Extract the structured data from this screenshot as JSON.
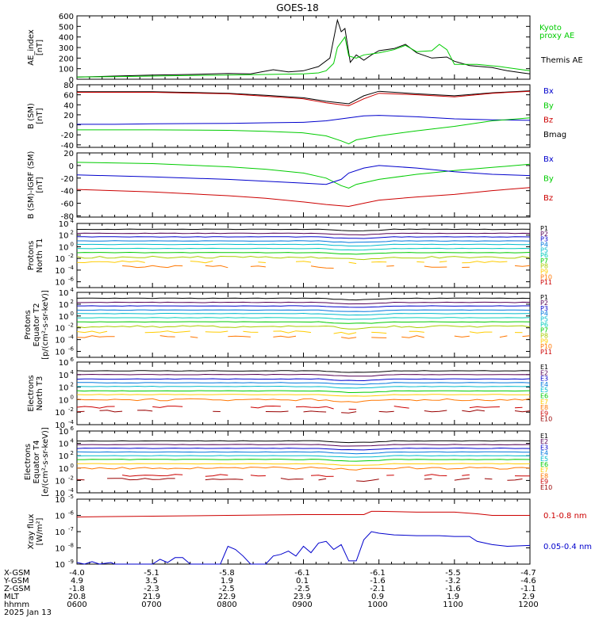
{
  "title": "GOES-18",
  "date_label": "2025 Jan 13",
  "chart_data": [
    {
      "id": "ae",
      "type": "line",
      "ylabel": [
        "AE_index",
        "[nT]"
      ],
      "ylim": [
        0,
        600
      ],
      "ticks": [
        0,
        100,
        200,
        300,
        400,
        500,
        600
      ],
      "tick_labels": [
        "0",
        "100",
        "200",
        "300",
        "400",
        "500",
        "600"
      ],
      "legend": [
        {
          "label": "Kyoto",
          "color": "#00cc00"
        },
        {
          "label": "proxy AE",
          "color": "#00cc00"
        },
        {
          "label": "Themis AE",
          "color": "#000000"
        }
      ],
      "series": [
        {
          "color": "#000000",
          "x": [
            6.0,
            6.5,
            7.0,
            7.5,
            8.0,
            8.3,
            8.6,
            8.8,
            9.0,
            9.2,
            9.35,
            9.45,
            9.5,
            9.55,
            9.62,
            9.7,
            9.8,
            9.9,
            10.0,
            10.2,
            10.35,
            10.5,
            10.7,
            10.9,
            11.0,
            11.2,
            11.5,
            11.7,
            11.9,
            12.0
          ],
          "y": [
            20,
            30,
            40,
            45,
            55,
            50,
            90,
            70,
            80,
            120,
            200,
            560,
            450,
            480,
            160,
            230,
            180,
            230,
            270,
            290,
            330,
            250,
            200,
            210,
            170,
            130,
            110,
            80,
            60,
            50
          ]
        },
        {
          "color": "#00cc00",
          "x": [
            6.0,
            6.5,
            7.0,
            7.5,
            8.0,
            8.5,
            9.0,
            9.2,
            9.3,
            9.4,
            9.45,
            9.5,
            9.55,
            9.6,
            9.7,
            9.8,
            10.0,
            10.2,
            10.35,
            10.5,
            10.7,
            10.8,
            10.9,
            11.0,
            11.3,
            11.6,
            11.9,
            12.0
          ],
          "y": [
            20,
            25,
            30,
            35,
            40,
            45,
            50,
            60,
            80,
            150,
            300,
            350,
            400,
            220,
            200,
            230,
            250,
            280,
            320,
            260,
            270,
            330,
            280,
            140,
            140,
            120,
            90,
            80
          ]
        }
      ]
    },
    {
      "id": "bsm",
      "type": "line",
      "ylabel": [
        "B (SM)",
        "[nT]"
      ],
      "ylim": [
        -45,
        80
      ],
      "ticks": [
        -40,
        -20,
        0,
        20,
        40,
        60,
        80
      ],
      "tick_labels": [
        "-40",
        "-20",
        "0",
        "20",
        "40",
        "60",
        "80"
      ],
      "legend": [
        {
          "label": "Bx",
          "color": "#0000cc"
        },
        {
          "label": "By",
          "color": "#00cc00"
        },
        {
          "label": "Bz",
          "color": "#cc0000"
        },
        {
          "label": "Bmag",
          "color": "#000000"
        }
      ],
      "series": [
        {
          "color": "#000000",
          "x": [
            6.0,
            7.0,
            8.0,
            8.5,
            9.0,
            9.3,
            9.6,
            9.8,
            10.0,
            10.5,
            11.0,
            11.5,
            12.0
          ],
          "y": [
            66,
            66,
            63,
            59,
            54,
            47,
            42,
            58,
            67,
            62,
            58,
            64,
            68
          ]
        },
        {
          "color": "#cc0000",
          "x": [
            6.0,
            7.0,
            8.0,
            8.5,
            9.0,
            9.3,
            9.6,
            9.8,
            10.0,
            10.5,
            11.0,
            11.5,
            12.0
          ],
          "y": [
            65,
            65,
            62,
            57,
            52,
            44,
            38,
            52,
            63,
            60,
            56,
            63,
            67
          ]
        },
        {
          "color": "#0000cc",
          "x": [
            6.0,
            6.5,
            7.0,
            8.0,
            8.5,
            9.0,
            9.3,
            9.6,
            9.8,
            10.0,
            10.5,
            11.0,
            11.5,
            12.0
          ],
          "y": [
            1,
            1,
            2,
            3,
            4,
            5,
            8,
            14,
            18,
            19,
            16,
            12,
            10,
            9
          ]
        },
        {
          "color": "#00cc00",
          "x": [
            6.0,
            7.0,
            8.0,
            8.5,
            9.0,
            9.3,
            9.5,
            9.6,
            9.7,
            10.0,
            10.5,
            11.0,
            11.5,
            12.0
          ],
          "y": [
            -10,
            -10,
            -11,
            -13,
            -16,
            -22,
            -32,
            -38,
            -30,
            -22,
            -12,
            -3,
            8,
            14
          ]
        }
      ]
    },
    {
      "id": "bigrf",
      "type": "line",
      "ylabel": [
        "B (SM)-IGRF (SM)",
        "[nT]"
      ],
      "ylim": [
        -82,
        20
      ],
      "ticks": [
        -80,
        -60,
        -40,
        -20,
        0,
        20
      ],
      "tick_labels": [
        "-80",
        "-60",
        "-40",
        "-20",
        "0",
        "20"
      ],
      "legend": [
        {
          "label": "Bx",
          "color": "#0000cc"
        },
        {
          "label": "By",
          "color": "#00cc00"
        },
        {
          "label": "Bz",
          "color": "#cc0000"
        }
      ],
      "series": [
        {
          "color": "#00cc00",
          "x": [
            6.0,
            7.0,
            8.0,
            8.5,
            9.0,
            9.3,
            9.5,
            9.6,
            9.7,
            10.0,
            10.5,
            11.0,
            11.5,
            12.0
          ],
          "y": [
            5,
            3,
            -2,
            -6,
            -12,
            -20,
            -32,
            -36,
            -30,
            -22,
            -14,
            -8,
            -3,
            2
          ]
        },
        {
          "color": "#0000cc",
          "x": [
            6.0,
            7.0,
            8.0,
            8.5,
            9.0,
            9.3,
            9.5,
            9.6,
            9.8,
            10.0,
            10.5,
            11.0,
            11.5,
            12.0
          ],
          "y": [
            -15,
            -18,
            -22,
            -25,
            -28,
            -30,
            -22,
            -12,
            -4,
            0,
            -4,
            -10,
            -14,
            -16
          ]
        },
        {
          "color": "#cc0000",
          "x": [
            6.0,
            7.0,
            8.0,
            8.5,
            9.0,
            9.3,
            9.5,
            9.6,
            9.8,
            10.0,
            10.5,
            11.0,
            11.5,
            12.0
          ],
          "y": [
            -38,
            -42,
            -48,
            -52,
            -58,
            -62,
            -64,
            -65,
            -60,
            -55,
            -50,
            -46,
            -40,
            -35
          ]
        }
      ]
    },
    {
      "id": "pnorth",
      "type": "line",
      "log": true,
      "ylabel": [
        "Protons",
        "North T1"
      ],
      "ylim_exp": [
        -7,
        4
      ],
      "tick_exps": [
        4,
        2,
        0,
        -2,
        -4,
        -6
      ],
      "legend": [
        {
          "label": "P1",
          "color": "#000000"
        },
        {
          "label": "P2",
          "color": "#550055"
        },
        {
          "label": "P3",
          "color": "#0000cc"
        },
        {
          "label": "P4",
          "color": "#0077dd"
        },
        {
          "label": "P5",
          "color": "#00bbcc"
        },
        {
          "label": "P6",
          "color": "#00ccbb"
        },
        {
          "label": "P7",
          "color": "#00cc00"
        },
        {
          "label": "P8",
          "color": "#aacc00"
        },
        {
          "label": "P9",
          "color": "#ffcc00"
        },
        {
          "label": "P10",
          "color": "#ff7700"
        },
        {
          "label": "P11",
          "color": "#cc0000"
        }
      ],
      "levels": [
        3.0,
        2.3,
        1.7,
        1.0,
        0.4,
        -0.3,
        -1.0,
        -1.8,
        -2.6,
        -3.4
      ]
    },
    {
      "id": "pequator",
      "type": "line",
      "log": true,
      "ylabel": [
        "Protons",
        "Equator T2",
        "[p/(cm²-s-sr-keV)]"
      ],
      "ylim_exp": [
        -7,
        4
      ],
      "tick_exps": [
        4,
        2,
        0,
        -2,
        -4,
        -6
      ],
      "legend": [
        {
          "label": "P1",
          "color": "#000000"
        },
        {
          "label": "P2",
          "color": "#550055"
        },
        {
          "label": "P3",
          "color": "#0000cc"
        },
        {
          "label": "P4",
          "color": "#0077dd"
        },
        {
          "label": "P5",
          "color": "#00bbcc"
        },
        {
          "label": "P6",
          "color": "#00ccbb"
        },
        {
          "label": "P7",
          "color": "#00cc00"
        },
        {
          "label": "P8",
          "color": "#aacc00"
        },
        {
          "label": "P9",
          "color": "#ffcc00"
        },
        {
          "label": "P10",
          "color": "#ff7700"
        },
        {
          "label": "P11",
          "color": "#cc0000"
        }
      ],
      "levels": [
        3.0,
        2.3,
        1.7,
        1.0,
        0.4,
        -0.3,
        -1.0,
        -1.8,
        -2.7,
        -3.5
      ]
    },
    {
      "id": "enorth",
      "type": "line",
      "log": true,
      "ylabel": [
        "Electrons",
        "North T3"
      ],
      "ylim_exp": [
        -4,
        6
      ],
      "tick_exps": [
        6,
        4,
        2,
        0,
        -2,
        -4
      ],
      "legend": [
        {
          "label": "E1",
          "color": "#000000"
        },
        {
          "label": "E2",
          "color": "#550055"
        },
        {
          "label": "E3",
          "color": "#0000cc"
        },
        {
          "label": "E4",
          "color": "#0077dd"
        },
        {
          "label": "E5",
          "color": "#00bbcc"
        },
        {
          "label": "E6",
          "color": "#00cc00"
        },
        {
          "label": "E7",
          "color": "#ffcc00"
        },
        {
          "label": "E8",
          "color": "#ff7700"
        },
        {
          "label": "E9",
          "color": "#cc0000"
        },
        {
          "label": "E10",
          "color": "#990000"
        }
      ],
      "levels": [
        4.6,
        4.0,
        3.3,
        2.7,
        2.1,
        1.4,
        0.8,
        0.0,
        -1.2,
        -1.8
      ]
    },
    {
      "id": "eequator",
      "type": "line",
      "log": true,
      "ylabel": [
        "Electrons",
        "Equator T4",
        "[e/(cm²-s-sr-keV)]"
      ],
      "ylim_exp": [
        -4,
        6
      ],
      "tick_exps": [
        6,
        4,
        2,
        0,
        -2,
        -4
      ],
      "legend": [
        {
          "label": "E1",
          "color": "#000000"
        },
        {
          "label": "E2",
          "color": "#550055"
        },
        {
          "label": "E3",
          "color": "#0000cc"
        },
        {
          "label": "E4",
          "color": "#0077dd"
        },
        {
          "label": "E5",
          "color": "#00bbcc"
        },
        {
          "label": "E6",
          "color": "#00cc00"
        },
        {
          "label": "E7",
          "color": "#ffcc00"
        },
        {
          "label": "E8",
          "color": "#ff7700"
        },
        {
          "label": "E9",
          "color": "#cc0000"
        },
        {
          "label": "E10",
          "color": "#990000"
        }
      ],
      "levels": [
        4.4,
        3.8,
        3.2,
        2.6,
        2.0,
        1.4,
        0.7,
        0.0,
        -1.2,
        -1.8
      ]
    },
    {
      "id": "xray",
      "type": "line",
      "log": true,
      "ylabel": [
        "Xray flux",
        "[W/m²]"
      ],
      "ylim_exp": [
        -9,
        -5
      ],
      "tick_exps": [
        -5,
        -6,
        -7,
        -8,
        -9
      ],
      "legend": [
        {
          "label": "0.1-0.8 nm",
          "color": "#cc0000"
        },
        {
          "label": "0.05-0.4 nm",
          "color": "#0000cc"
        }
      ],
      "series": [
        {
          "color": "#cc0000",
          "x": [
            6.0,
            7.0,
            8.0,
            9.0,
            9.8,
            9.9,
            10.0,
            10.5,
            11.0,
            11.3,
            11.5,
            12.0
          ],
          "y": [
            -6.1,
            -6.05,
            -6.0,
            -5.95,
            -5.95,
            -5.75,
            -5.75,
            -5.8,
            -5.8,
            -5.9,
            -6.0,
            -6.0
          ]
        },
        {
          "color": "#0000cc",
          "x": [
            6.0,
            6.1,
            6.2,
            6.3,
            6.45,
            6.5,
            6.6,
            6.8,
            7.0,
            7.1,
            7.2,
            7.3,
            7.4,
            7.5,
            7.6,
            7.7,
            7.8,
            7.9,
            8.0,
            8.1,
            8.2,
            8.3,
            8.5,
            8.6,
            8.7,
            8.8,
            8.9,
            9.0,
            9.1,
            9.2,
            9.3,
            9.4,
            9.5,
            9.6,
            9.7,
            9.8,
            9.9,
            10.0,
            10.2,
            10.5,
            10.8,
            11.0,
            11.2,
            11.3,
            11.5,
            11.7,
            12.0
          ],
          "y": [
            -8.9,
            -9.0,
            -8.85,
            -9.0,
            -8.9,
            -9.0,
            -9.0,
            -9.0,
            -9.0,
            -8.7,
            -8.9,
            -8.6,
            -8.6,
            -9.0,
            -9.0,
            -9.0,
            -9.0,
            -9.0,
            -7.9,
            -8.1,
            -8.5,
            -9.0,
            -9.0,
            -8.5,
            -8.4,
            -8.2,
            -8.5,
            -7.9,
            -8.3,
            -7.7,
            -7.6,
            -8.1,
            -7.8,
            -8.8,
            -8.8,
            -7.5,
            -7.0,
            -7.1,
            -7.2,
            -7.25,
            -7.25,
            -7.3,
            -7.3,
            -7.6,
            -7.8,
            -7.9,
            -7.85
          ]
        }
      ]
    }
  ],
  "ephemeris": {
    "rows": [
      {
        "label": "X-GSM",
        "values": [
          "-4.0",
          "-5.1",
          "-5.8",
          "-6.1",
          "-6.1",
          "-5.5",
          "-4.7"
        ]
      },
      {
        "label": "Y-GSM",
        "values": [
          "4.9",
          "3.5",
          "1.9",
          "0.1",
          "-1.6",
          "-3.2",
          "-4.6"
        ]
      },
      {
        "label": "Z-GSM",
        "values": [
          "-1.8",
          "-2.3",
          "-2.5",
          "-2.5",
          "-2.1",
          "-1.6",
          "-1.1"
        ]
      },
      {
        "label": "MLT",
        "values": [
          "20.8",
          "21.9",
          "22.9",
          "23.9",
          "0.9",
          "1.9",
          "2.9"
        ]
      },
      {
        "label": "hhmm",
        "values": [
          "0600",
          "0700",
          "0800",
          "0900",
          "1000",
          "1100",
          "1200"
        ]
      }
    ]
  }
}
